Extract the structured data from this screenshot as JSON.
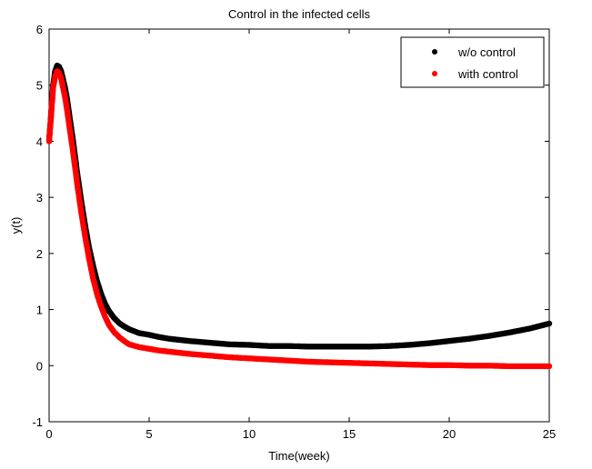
{
  "chart_data": {
    "type": "scatter",
    "title": "Control in  the infected cells",
    "xlabel": "Time(week)",
    "ylabel": "y(t)",
    "xlim": [
      0,
      25
    ],
    "ylim": [
      -1,
      6
    ],
    "xticks": [
      0,
      5,
      10,
      15,
      20,
      25
    ],
    "yticks": [
      -1,
      0,
      1,
      2,
      3,
      4,
      5,
      6
    ],
    "grid": false,
    "legend_position": "top-right",
    "marker": "dot",
    "series": [
      {
        "name": "w/o control",
        "color": "#000000",
        "x": [
          0,
          0.1,
          0.2,
          0.3,
          0.4,
          0.5,
          0.6,
          0.7,
          0.8,
          0.9,
          1.0,
          1.2,
          1.4,
          1.6,
          1.8,
          2.0,
          2.2,
          2.4,
          2.6,
          2.8,
          3.0,
          3.25,
          3.5,
          3.75,
          4.0,
          4.5,
          5,
          5.5,
          6,
          7,
          8,
          9,
          10,
          11,
          12,
          13,
          14,
          15,
          16,
          17,
          18,
          19,
          20,
          21,
          22,
          23,
          24,
          25
        ],
        "y": [
          4.0,
          4.5,
          5.0,
          5.25,
          5.35,
          5.33,
          5.25,
          5.1,
          4.95,
          4.75,
          4.5,
          4.0,
          3.45,
          2.95,
          2.5,
          2.1,
          1.78,
          1.5,
          1.28,
          1.1,
          0.97,
          0.85,
          0.76,
          0.7,
          0.65,
          0.58,
          0.55,
          0.51,
          0.48,
          0.44,
          0.41,
          0.38,
          0.37,
          0.35,
          0.35,
          0.34,
          0.34,
          0.34,
          0.34,
          0.35,
          0.37,
          0.4,
          0.44,
          0.48,
          0.53,
          0.59,
          0.66,
          0.75
        ]
      },
      {
        "name": "with control",
        "color": "#ff0000",
        "x": [
          0,
          0.1,
          0.2,
          0.3,
          0.4,
          0.5,
          0.6,
          0.7,
          0.8,
          0.9,
          1.0,
          1.2,
          1.4,
          1.6,
          1.8,
          2.0,
          2.2,
          2.4,
          2.6,
          2.8,
          3.0,
          3.25,
          3.5,
          3.75,
          4.0,
          4.5,
          5,
          5.5,
          6,
          7,
          8,
          9,
          10,
          11,
          12,
          13,
          14,
          15,
          16,
          17,
          18,
          19,
          20,
          21,
          22,
          23,
          24,
          25
        ],
        "y": [
          4.0,
          4.45,
          4.95,
          5.15,
          5.25,
          5.22,
          5.12,
          4.95,
          4.78,
          4.55,
          4.3,
          3.8,
          3.25,
          2.75,
          2.3,
          1.9,
          1.55,
          1.27,
          1.05,
          0.87,
          0.72,
          0.6,
          0.51,
          0.44,
          0.38,
          0.33,
          0.3,
          0.27,
          0.25,
          0.21,
          0.18,
          0.15,
          0.13,
          0.11,
          0.09,
          0.07,
          0.06,
          0.05,
          0.04,
          0.03,
          0.02,
          0.01,
          0.01,
          0.0,
          0.0,
          -0.01,
          -0.01,
          -0.01
        ]
      }
    ]
  }
}
